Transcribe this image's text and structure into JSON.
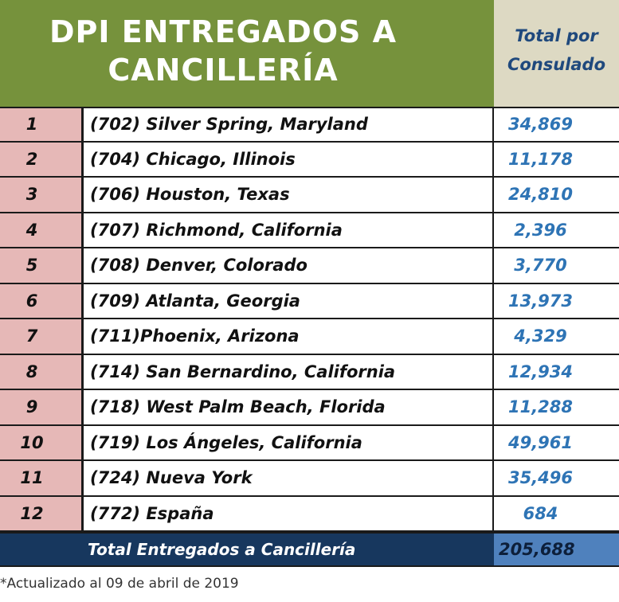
{
  "header": {
    "title": "DPI ENTREGADOS A\nCANCILLERÍA",
    "total_label": "Total por\nConsulado"
  },
  "rows": [
    {
      "num": "1",
      "name": "(702) Silver Spring, Maryland",
      "value": "34,869"
    },
    {
      "num": "2",
      "name": "(704) Chicago, Illinois",
      "value": "11,178"
    },
    {
      "num": "3",
      "name": "(706) Houston, Texas",
      "value": "24,810"
    },
    {
      "num": "4",
      "name": "(707) Richmond, California",
      "value": "2,396"
    },
    {
      "num": "5",
      "name": "(708) Denver, Colorado",
      "value": "3,770"
    },
    {
      "num": "6",
      "name": "(709) Atlanta, Georgia",
      "value": "13,973"
    },
    {
      "num": "7",
      "name": "(711)Phoenix, Arizona",
      "value": "4,329"
    },
    {
      "num": "8",
      "name": "(714) San Bernardino, California",
      "value": "12,934"
    },
    {
      "num": "9",
      "name": "(718) West Palm Beach, Florida",
      "value": "11,288"
    },
    {
      "num": "10",
      "name": "(719) Los Ángeles, California",
      "value": "49,961"
    },
    {
      "num": "11",
      "name": "(724) Nueva York",
      "value": "35,496"
    },
    {
      "num": "12",
      "name": "(772) España",
      "value": "684"
    }
  ],
  "total": {
    "label": "Total Entregados a Cancillería",
    "value": "205,688"
  },
  "footnote": "*Actualizado al 09 de abril de 2019",
  "colors": {
    "title_bg": "#76923c",
    "total_header_bg": "#ddd9c3",
    "number_cell_bg": "#e6b8b7",
    "value_text": "#2e74b5",
    "total_row_bg": "#17375e",
    "total_value_bg": "#4f81bd"
  }
}
